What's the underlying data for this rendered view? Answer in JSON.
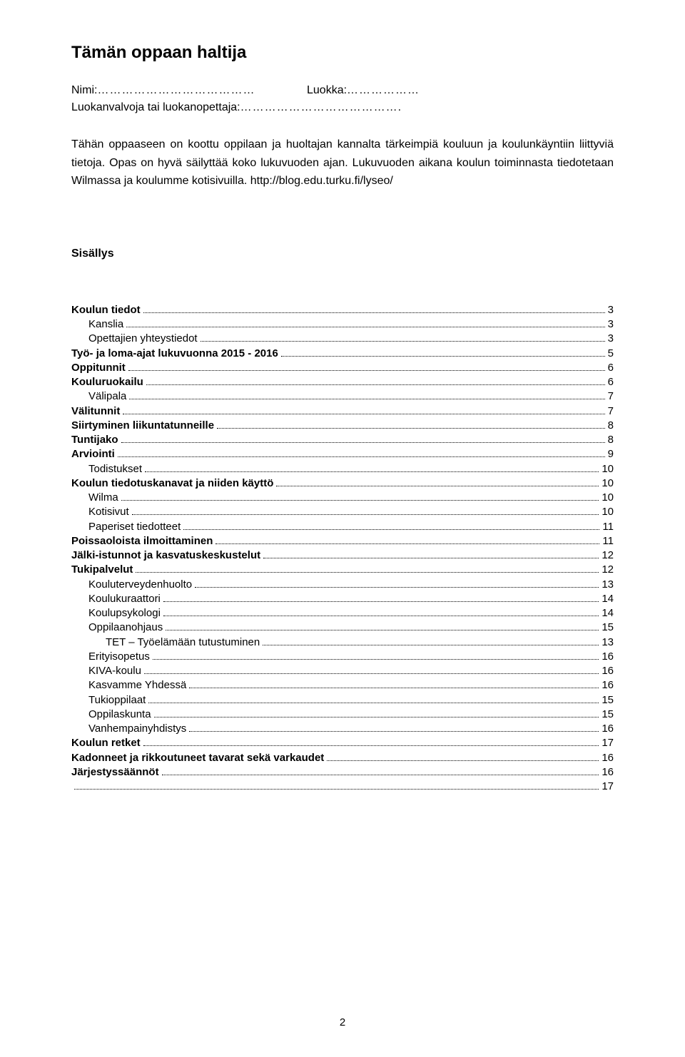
{
  "title": "Tämän oppaan haltija",
  "labels": {
    "nimi": "Nimi:",
    "nimi_dots": "…………………………………",
    "luokka": "Luokka:",
    "luokka_dots": "………………",
    "lv": "Luokanvalvoja tai luokanopettaja:",
    "lv_dots": "…………………………………."
  },
  "intro_text": "Tähän oppaaseen on koottu oppilaan ja huoltajan kannalta tärkeimpiä kouluun ja koulunkäyntiin liittyviä tietoja. Opas on hyvä säilyttää koko lukuvuoden ajan. Lukuvuoden aikana koulun toiminnasta tiedotetaan Wilmassa ja koulumme kotisivuilla. http://blog.edu.turku.fi/lyseo/",
  "sisallys": "Sisällys",
  "page_number": "2",
  "toc": [
    {
      "label": "Koulun tiedot",
      "page": "3",
      "bold": true,
      "indent": 0
    },
    {
      "label": "Kanslia",
      "page": "3",
      "bold": false,
      "indent": 1
    },
    {
      "label": "Opettajien yhteystiedot",
      "page": "3",
      "bold": false,
      "indent": 1
    },
    {
      "label": "Työ- ja loma-ajat lukuvuonna 2015 - 2016",
      "page": "5",
      "bold": true,
      "indent": 0
    },
    {
      "label": "Oppitunnit",
      "page": "6",
      "bold": true,
      "indent": 0
    },
    {
      "label": "Kouluruokailu",
      "page": "6",
      "bold": true,
      "indent": 0
    },
    {
      "label": "Välipala",
      "page": "7",
      "bold": false,
      "indent": 1
    },
    {
      "label": "Välitunnit",
      "page": "7",
      "bold": true,
      "indent": 0
    },
    {
      "label": "Siirtyminen liikuntatunneille",
      "page": "8",
      "bold": true,
      "indent": 0
    },
    {
      "label": "Tuntijako",
      "page": "8",
      "bold": true,
      "indent": 0
    },
    {
      "label": "Arviointi",
      "page": "9",
      "bold": true,
      "indent": 0
    },
    {
      "label": "Todistukset",
      "page": "10",
      "bold": false,
      "indent": 1
    },
    {
      "label": "Koulun tiedotuskanavat ja niiden käyttö",
      "page": "10",
      "bold": true,
      "indent": 0
    },
    {
      "label": "Wilma",
      "page": "10",
      "bold": false,
      "indent": 1
    },
    {
      "label": "Kotisivut",
      "page": "10",
      "bold": false,
      "indent": 1
    },
    {
      "label": "Paperiset tiedotteet",
      "page": "11",
      "bold": false,
      "indent": 1
    },
    {
      "label": "Poissaoloista ilmoittaminen",
      "page": "11",
      "bold": true,
      "indent": 0
    },
    {
      "label": "Jälki-istunnot ja kasvatuskeskustelut",
      "page": "12",
      "bold": true,
      "indent": 0
    },
    {
      "label": "Tukipalvelut",
      "page": "12",
      "bold": true,
      "indent": 0
    },
    {
      "label": "Kouluterveydenhuolto",
      "page": "13",
      "bold": false,
      "indent": 1
    },
    {
      "label": "Koulukuraattori",
      "page": "14",
      "bold": false,
      "indent": 1
    },
    {
      "label": "Koulupsykologi",
      "page": "14",
      "bold": false,
      "indent": 1
    },
    {
      "label": "Oppilaanohjaus",
      "page": "15",
      "bold": false,
      "indent": 1
    },
    {
      "label": "TET – Työelämään tutustuminen",
      "page": "13",
      "bold": false,
      "indent": 2
    },
    {
      "label": "Erityisopetus",
      "page": "16",
      "bold": false,
      "indent": 1
    },
    {
      "label": "KIVA-koulu",
      "page": "16",
      "bold": false,
      "indent": 1
    },
    {
      "label": "Kasvamme Yhdessä",
      "page": "16",
      "bold": false,
      "indent": 1
    },
    {
      "label": "Tukioppilaat",
      "page": "15",
      "bold": false,
      "indent": 1
    },
    {
      "label": "Oppilaskunta",
      "page": "15",
      "bold": false,
      "indent": 1
    },
    {
      "label": "Vanhempainyhdistys",
      "page": "16",
      "bold": false,
      "indent": 1
    },
    {
      "label": "Koulun retket",
      "page": "17",
      "bold": true,
      "indent": 0
    },
    {
      "label": "Kadonneet ja rikkoutuneet tavarat sekä varkaudet",
      "page": "16",
      "bold": true,
      "indent": 0
    },
    {
      "label": "Järjestyssäännöt",
      "page": "16",
      "bold": true,
      "indent": 0
    },
    {
      "label": "",
      "page": "17",
      "bold": false,
      "indent": 0,
      "trailing": true
    }
  ]
}
